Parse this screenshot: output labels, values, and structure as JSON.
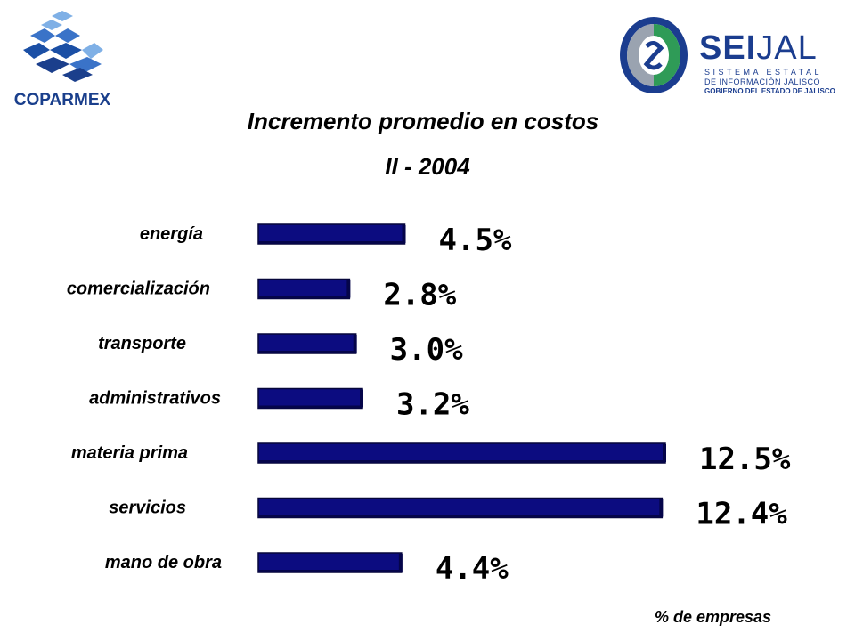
{
  "logos": {
    "left_text": "COPARMEX",
    "right_name_strong": "SEI",
    "right_name_light": "JAL",
    "right_sub1": "SISTEMA ESTATAL",
    "right_sub2": "DE INFORMACIÓN JALISCO",
    "right_sub3": "GOBIERNO DEL ESTADO DE JALISCO"
  },
  "chart_data": {
    "type": "bar",
    "orientation": "horizontal",
    "title": "Incremento promedio en costos",
    "subtitle": "II - 2004",
    "categories": [
      "energía",
      "comercialización",
      "transporte",
      "administrativos",
      "materia prima",
      "servicios",
      "mano de obra"
    ],
    "values": [
      4.5,
      2.8,
      3.0,
      3.2,
      12.5,
      12.4,
      4.4
    ],
    "value_labels": [
      "4.5%",
      "2.8%",
      "3.0%",
      "3.2%",
      "12.5%",
      "12.4%",
      "4.4%"
    ],
    "unit_note": "% de empresas",
    "xlim": [
      0,
      12.5
    ],
    "grid": false,
    "legend": "none",
    "bar_color": "#0c0c80",
    "bar_edge_color": "#06063a"
  }
}
